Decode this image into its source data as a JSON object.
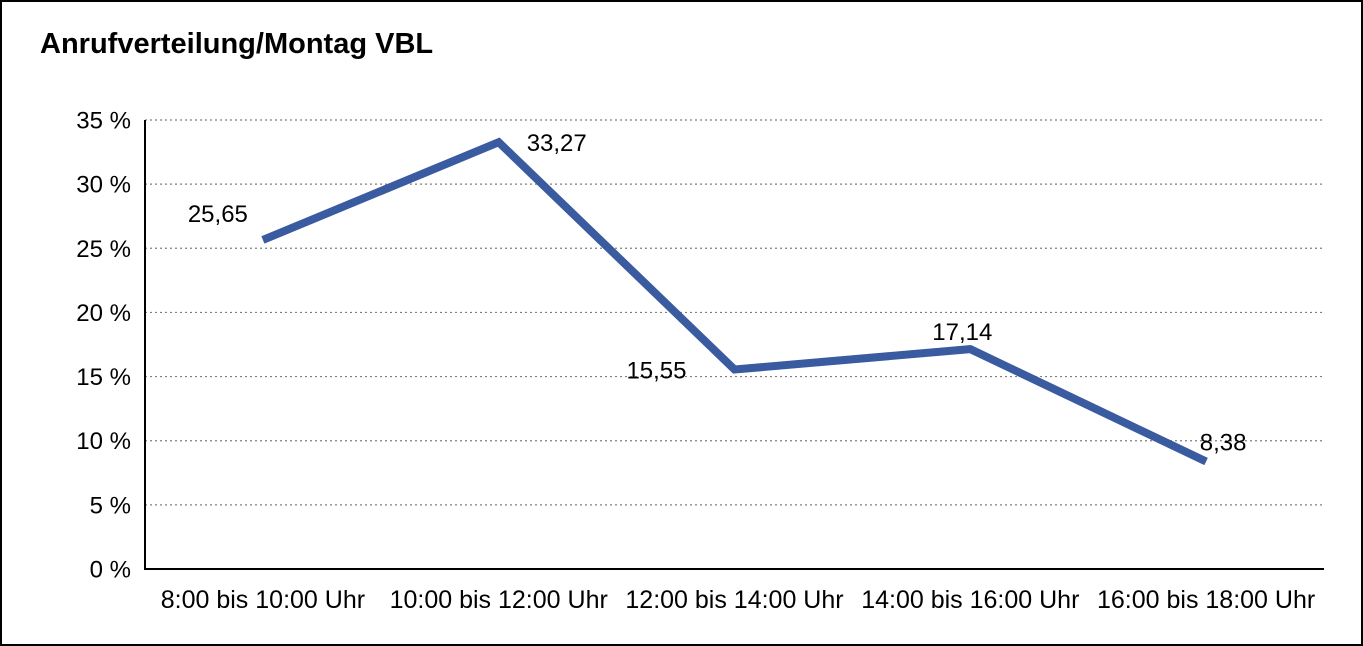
{
  "title": "Anrufverteilung/Montag VBL",
  "chart_data": {
    "type": "line",
    "title": "Anrufverteilung/Montag VBL",
    "categories": [
      "8:00 bis 10:00 Uhr",
      "10:00 bis 12:00 Uhr",
      "12:00 bis 14:00 Uhr",
      "14:00 bis 16:00 Uhr",
      "16:00 bis 18:00 Uhr"
    ],
    "values": [
      25.65,
      33.27,
      15.55,
      17.14,
      8.38
    ],
    "value_labels": [
      "25,65",
      "33,27",
      "15,55",
      "17,14",
      "8,38"
    ],
    "xlabel": "",
    "ylabel": "",
    "ylim": [
      0,
      35
    ],
    "ytick_step": 5,
    "ytick_labels": [
      "0 %",
      "5 %",
      "10 %",
      "15 %",
      "20 %",
      "25 %",
      "30 %",
      "35 %"
    ],
    "grid": "horizontal-dotted",
    "legend_position": "none",
    "series_name": "Anrufverteilung Montag VBL"
  },
  "colors": {
    "line": "#3A5BA0",
    "grid": "#7F7F7F",
    "axis": "#000000",
    "text": "#000000",
    "background": "#FFFFFF",
    "border": "#000000"
  }
}
